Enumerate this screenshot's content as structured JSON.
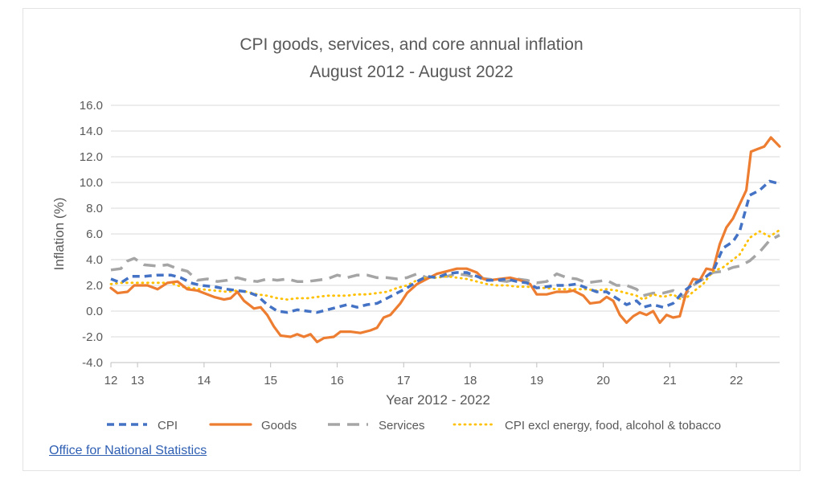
{
  "chart_data": {
    "type": "line",
    "title": "CPI goods, services, and core annual inflation",
    "subtitle": "August 2012 - August 2022",
    "xlabel": "Year 2012 - 2022",
    "ylabel": "Inflation (%)",
    "ylim": [
      -4,
      16
    ],
    "yticks": [
      "16.0",
      "14.0",
      "12.0",
      "10.0",
      "8.0",
      "6.0",
      "4.0",
      "2.0",
      "0.0",
      "-2.0",
      "-4.0"
    ],
    "xlim": [
      2012.6,
      2022.65
    ],
    "xticks": [
      {
        "label": "12",
        "x": 2012.6
      },
      {
        "label": "13",
        "x": 2013.0
      },
      {
        "label": "14",
        "x": 2014.0
      },
      {
        "label": "15",
        "x": 2015.0
      },
      {
        "label": "16",
        "x": 2016.0
      },
      {
        "label": "17",
        "x": 2017.0
      },
      {
        "label": "18",
        "x": 2018.0
      },
      {
        "label": "19",
        "x": 2019.0
      },
      {
        "label": "20",
        "x": 2020.0
      },
      {
        "label": "21",
        "x": 2021.0
      },
      {
        "label": "22",
        "x": 2022.0
      }
    ],
    "grid": "horizontal",
    "legend_position": "bottom",
    "series": [
      {
        "name": "CPI",
        "color": "#4472c4",
        "style": "dash-short",
        "points": [
          [
            2012.6,
            2.5
          ],
          [
            2012.75,
            2.2
          ],
          [
            2012.9,
            2.7
          ],
          [
            2013.1,
            2.7
          ],
          [
            2013.3,
            2.8
          ],
          [
            2013.5,
            2.8
          ],
          [
            2013.65,
            2.6
          ],
          [
            2013.8,
            2.2
          ],
          [
            2013.95,
            2.0
          ],
          [
            2014.15,
            1.9
          ],
          [
            2014.35,
            1.7
          ],
          [
            2014.5,
            1.6
          ],
          [
            2014.65,
            1.5
          ],
          [
            2014.8,
            1.2
          ],
          [
            2014.95,
            0.5
          ],
          [
            2015.1,
            0.0
          ],
          [
            2015.25,
            -0.1
          ],
          [
            2015.4,
            0.1
          ],
          [
            2015.55,
            0.0
          ],
          [
            2015.7,
            -0.1
          ],
          [
            2015.85,
            0.1
          ],
          [
            2016.0,
            0.3
          ],
          [
            2016.15,
            0.5
          ],
          [
            2016.3,
            0.3
          ],
          [
            2016.45,
            0.5
          ],
          [
            2016.6,
            0.6
          ],
          [
            2016.75,
            1.0
          ],
          [
            2016.9,
            1.4
          ],
          [
            2017.05,
            1.8
          ],
          [
            2017.2,
            2.3
          ],
          [
            2017.35,
            2.7
          ],
          [
            2017.5,
            2.6
          ],
          [
            2017.65,
            2.9
          ],
          [
            2017.8,
            3.0
          ],
          [
            2017.95,
            3.0
          ],
          [
            2018.1,
            2.7
          ],
          [
            2018.25,
            2.4
          ],
          [
            2018.4,
            2.4
          ],
          [
            2018.55,
            2.5
          ],
          [
            2018.7,
            2.3
          ],
          [
            2018.85,
            2.2
          ],
          [
            2019.0,
            1.8
          ],
          [
            2019.15,
            1.9
          ],
          [
            2019.3,
            2.0
          ],
          [
            2019.45,
            2.0
          ],
          [
            2019.6,
            2.1
          ],
          [
            2019.75,
            1.8
          ],
          [
            2019.9,
            1.5
          ],
          [
            2020.05,
            1.5
          ],
          [
            2020.2,
            1.0
          ],
          [
            2020.35,
            0.5
          ],
          [
            2020.5,
            0.8
          ],
          [
            2020.6,
            0.3
          ],
          [
            2020.75,
            0.5
          ],
          [
            2020.9,
            0.3
          ],
          [
            2021.05,
            0.6
          ],
          [
            2021.2,
            1.5
          ],
          [
            2021.35,
            2.1
          ],
          [
            2021.5,
            2.5
          ],
          [
            2021.65,
            3.1
          ],
          [
            2021.8,
            4.9
          ],
          [
            2021.95,
            5.4
          ],
          [
            2022.05,
            6.2
          ],
          [
            2022.2,
            9.0
          ],
          [
            2022.35,
            9.4
          ],
          [
            2022.5,
            10.1
          ],
          [
            2022.65,
            9.9
          ]
        ]
      },
      {
        "name": "Goods",
        "color": "#ed7d31",
        "style": "solid",
        "points": [
          [
            2012.6,
            1.8
          ],
          [
            2012.7,
            1.4
          ],
          [
            2012.85,
            1.5
          ],
          [
            2012.95,
            2.0
          ],
          [
            2013.15,
            2.0
          ],
          [
            2013.3,
            1.7
          ],
          [
            2013.45,
            2.2
          ],
          [
            2013.6,
            2.3
          ],
          [
            2013.75,
            1.7
          ],
          [
            2013.9,
            1.6
          ],
          [
            2014.0,
            1.4
          ],
          [
            2014.15,
            1.1
          ],
          [
            2014.3,
            0.9
          ],
          [
            2014.4,
            1.0
          ],
          [
            2014.5,
            1.5
          ],
          [
            2014.6,
            0.8
          ],
          [
            2014.75,
            0.2
          ],
          [
            2014.85,
            0.3
          ],
          [
            2014.95,
            -0.3
          ],
          [
            2015.05,
            -1.2
          ],
          [
            2015.15,
            -1.9
          ],
          [
            2015.3,
            -2.0
          ],
          [
            2015.4,
            -1.8
          ],
          [
            2015.5,
            -2.0
          ],
          [
            2015.6,
            -1.8
          ],
          [
            2015.7,
            -2.4
          ],
          [
            2015.8,
            -2.1
          ],
          [
            2015.95,
            -2.0
          ],
          [
            2016.05,
            -1.6
          ],
          [
            2016.2,
            -1.6
          ],
          [
            2016.35,
            -1.7
          ],
          [
            2016.5,
            -1.5
          ],
          [
            2016.6,
            -1.3
          ],
          [
            2016.7,
            -0.5
          ],
          [
            2016.8,
            -0.3
          ],
          [
            2016.95,
            0.6
          ],
          [
            2017.05,
            1.4
          ],
          [
            2017.2,
            2.1
          ],
          [
            2017.35,
            2.5
          ],
          [
            2017.5,
            2.9
          ],
          [
            2017.65,
            3.1
          ],
          [
            2017.8,
            3.3
          ],
          [
            2017.95,
            3.3
          ],
          [
            2018.1,
            3.0
          ],
          [
            2018.2,
            2.5
          ],
          [
            2018.3,
            2.4
          ],
          [
            2018.45,
            2.5
          ],
          [
            2018.6,
            2.6
          ],
          [
            2018.75,
            2.4
          ],
          [
            2018.9,
            2.1
          ],
          [
            2019.0,
            1.3
          ],
          [
            2019.15,
            1.3
          ],
          [
            2019.3,
            1.5
          ],
          [
            2019.45,
            1.5
          ],
          [
            2019.55,
            1.6
          ],
          [
            2019.7,
            1.2
          ],
          [
            2019.8,
            0.6
          ],
          [
            2019.95,
            0.7
          ],
          [
            2020.05,
            1.1
          ],
          [
            2020.15,
            0.8
          ],
          [
            2020.25,
            -0.3
          ],
          [
            2020.35,
            -0.9
          ],
          [
            2020.45,
            -0.4
          ],
          [
            2020.55,
            -0.1
          ],
          [
            2020.65,
            -0.3
          ],
          [
            2020.75,
            0.0
          ],
          [
            2020.85,
            -0.9
          ],
          [
            2020.95,
            -0.3
          ],
          [
            2021.05,
            -0.5
          ],
          [
            2021.15,
            -0.4
          ],
          [
            2021.25,
            1.5
          ],
          [
            2021.35,
            2.5
          ],
          [
            2021.45,
            2.4
          ],
          [
            2021.55,
            3.3
          ],
          [
            2021.65,
            3.2
          ],
          [
            2021.75,
            5.2
          ],
          [
            2021.85,
            6.5
          ],
          [
            2021.95,
            7.2
          ],
          [
            2022.05,
            8.3
          ],
          [
            2022.15,
            9.4
          ],
          [
            2022.22,
            12.4
          ],
          [
            2022.32,
            12.6
          ],
          [
            2022.42,
            12.8
          ],
          [
            2022.52,
            13.5
          ],
          [
            2022.65,
            12.8
          ]
        ]
      },
      {
        "name": "Services",
        "color": "#a5a5a5",
        "style": "dash-long",
        "points": [
          [
            2012.6,
            3.2
          ],
          [
            2012.75,
            3.3
          ],
          [
            2012.85,
            3.9
          ],
          [
            2012.95,
            4.1
          ],
          [
            2013.1,
            3.6
          ],
          [
            2013.3,
            3.5
          ],
          [
            2013.45,
            3.6
          ],
          [
            2013.6,
            3.3
          ],
          [
            2013.75,
            3.1
          ],
          [
            2013.9,
            2.4
          ],
          [
            2014.05,
            2.5
          ],
          [
            2014.2,
            2.3
          ],
          [
            2014.35,
            2.4
          ],
          [
            2014.5,
            2.6
          ],
          [
            2014.65,
            2.4
          ],
          [
            2014.8,
            2.3
          ],
          [
            2014.95,
            2.5
          ],
          [
            2015.1,
            2.4
          ],
          [
            2015.25,
            2.5
          ],
          [
            2015.4,
            2.3
          ],
          [
            2015.55,
            2.3
          ],
          [
            2015.7,
            2.4
          ],
          [
            2015.85,
            2.5
          ],
          [
            2016.0,
            2.8
          ],
          [
            2016.15,
            2.6
          ],
          [
            2016.3,
            2.8
          ],
          [
            2016.45,
            2.8
          ],
          [
            2016.6,
            2.6
          ],
          [
            2016.75,
            2.6
          ],
          [
            2016.9,
            2.5
          ],
          [
            2017.05,
            2.6
          ],
          [
            2017.2,
            2.9
          ],
          [
            2017.35,
            2.6
          ],
          [
            2017.5,
            2.7
          ],
          [
            2017.65,
            2.7
          ],
          [
            2017.8,
            2.9
          ],
          [
            2017.95,
            2.8
          ],
          [
            2018.1,
            2.6
          ],
          [
            2018.25,
            2.5
          ],
          [
            2018.4,
            2.4
          ],
          [
            2018.55,
            2.3
          ],
          [
            2018.7,
            2.5
          ],
          [
            2018.85,
            2.4
          ],
          [
            2019.0,
            2.2
          ],
          [
            2019.15,
            2.3
          ],
          [
            2019.3,
            2.9
          ],
          [
            2019.45,
            2.6
          ],
          [
            2019.6,
            2.5
          ],
          [
            2019.75,
            2.2
          ],
          [
            2019.9,
            2.3
          ],
          [
            2020.05,
            2.4
          ],
          [
            2020.2,
            2.0
          ],
          [
            2020.35,
            2.0
          ],
          [
            2020.5,
            1.7
          ],
          [
            2020.6,
            1.2
          ],
          [
            2020.75,
            1.4
          ],
          [
            2020.9,
            1.4
          ],
          [
            2021.05,
            1.6
          ],
          [
            2021.2,
            1.1
          ],
          [
            2021.35,
            2.0
          ],
          [
            2021.5,
            2.5
          ],
          [
            2021.65,
            3.0
          ],
          [
            2021.8,
            3.1
          ],
          [
            2021.95,
            3.4
          ],
          [
            2022.05,
            3.5
          ],
          [
            2022.2,
            3.9
          ],
          [
            2022.35,
            4.6
          ],
          [
            2022.5,
            5.5
          ],
          [
            2022.65,
            5.9
          ]
        ]
      },
      {
        "name": "CPI excl energy, food, alcohol & tobacco",
        "color": "#ffc000",
        "style": "dotted",
        "points": [
          [
            2012.6,
            2.1
          ],
          [
            2012.75,
            2.2
          ],
          [
            2012.9,
            2.2
          ],
          [
            2013.1,
            2.2
          ],
          [
            2013.3,
            2.2
          ],
          [
            2013.5,
            2.2
          ],
          [
            2013.65,
            1.9
          ],
          [
            2013.8,
            1.8
          ],
          [
            2013.95,
            1.7
          ],
          [
            2014.15,
            1.6
          ],
          [
            2014.35,
            1.5
          ],
          [
            2014.5,
            1.6
          ],
          [
            2014.65,
            1.5
          ],
          [
            2014.8,
            1.3
          ],
          [
            2014.95,
            1.2
          ],
          [
            2015.1,
            1.0
          ],
          [
            2015.25,
            0.9
          ],
          [
            2015.4,
            1.0
          ],
          [
            2015.55,
            1.0
          ],
          [
            2015.7,
            1.1
          ],
          [
            2015.85,
            1.2
          ],
          [
            2016.0,
            1.2
          ],
          [
            2016.15,
            1.2
          ],
          [
            2016.3,
            1.3
          ],
          [
            2016.45,
            1.3
          ],
          [
            2016.6,
            1.4
          ],
          [
            2016.75,
            1.5
          ],
          [
            2016.9,
            1.8
          ],
          [
            2017.05,
            2.0
          ],
          [
            2017.2,
            2.4
          ],
          [
            2017.35,
            2.6
          ],
          [
            2017.5,
            2.6
          ],
          [
            2017.65,
            2.7
          ],
          [
            2017.8,
            2.6
          ],
          [
            2017.95,
            2.5
          ],
          [
            2018.1,
            2.3
          ],
          [
            2018.25,
            2.1
          ],
          [
            2018.4,
            2.0
          ],
          [
            2018.55,
            2.0
          ],
          [
            2018.7,
            1.9
          ],
          [
            2018.85,
            1.9
          ],
          [
            2019.0,
            1.8
          ],
          [
            2019.15,
            1.8
          ],
          [
            2019.3,
            1.7
          ],
          [
            2019.45,
            1.7
          ],
          [
            2019.6,
            1.7
          ],
          [
            2019.75,
            1.7
          ],
          [
            2019.9,
            1.6
          ],
          [
            2020.05,
            1.7
          ],
          [
            2020.2,
            1.6
          ],
          [
            2020.35,
            1.4
          ],
          [
            2020.5,
            1.2
          ],
          [
            2020.6,
            0.9
          ],
          [
            2020.75,
            1.3
          ],
          [
            2020.9,
            1.1
          ],
          [
            2021.05,
            1.3
          ],
          [
            2021.2,
            0.8
          ],
          [
            2021.35,
            1.5
          ],
          [
            2021.5,
            2.1
          ],
          [
            2021.65,
            3.1
          ],
          [
            2021.8,
            3.4
          ],
          [
            2021.95,
            4.0
          ],
          [
            2022.05,
            4.4
          ],
          [
            2022.2,
            5.7
          ],
          [
            2022.35,
            6.2
          ],
          [
            2022.5,
            5.8
          ],
          [
            2022.65,
            6.3
          ]
        ]
      }
    ]
  },
  "source_link": "Office for National Statistics"
}
